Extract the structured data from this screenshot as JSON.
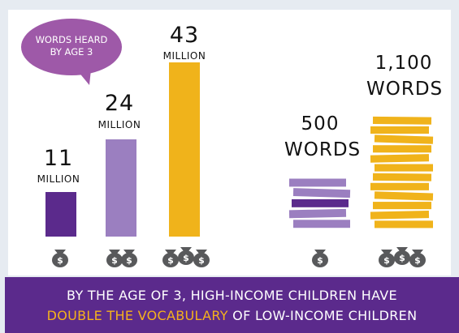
{
  "bubble": {
    "line1": "WORDS HEARD",
    "line2": "BY AGE 3"
  },
  "right_labels": {
    "low_value": "500",
    "high_value": "1,100"
  },
  "footer": {
    "line1": "BY THE AGE OF 3, HIGH-INCOME CHILDREN HAVE",
    "line2_highlight": "DOUBLE THE VOCABULARY",
    "line2_rest": " OF LOW-INCOME CHILDREN"
  },
  "colors": {
    "low": "#5b2a8c",
    "mid": "#9b7fc0",
    "high": "#f0b31b",
    "bag": "#58595b",
    "bubble": "#9e59a8"
  },
  "chart_data": [
    {
      "type": "bar",
      "title": "WORDS HEARD BY AGE 3",
      "unit": "MILLION",
      "values": [
        11,
        24,
        43
      ],
      "bag_counts": [
        1,
        2,
        3
      ],
      "colors": [
        "#5b2a8c",
        "#9b7fc0",
        "#f0b31b"
      ]
    },
    {
      "type": "bar",
      "unit": "WORDS",
      "values": [
        500,
        1100
      ],
      "bag_counts": [
        1,
        3
      ],
      "colors": [
        "#9b7fc0",
        "#f0b31b"
      ]
    }
  ]
}
